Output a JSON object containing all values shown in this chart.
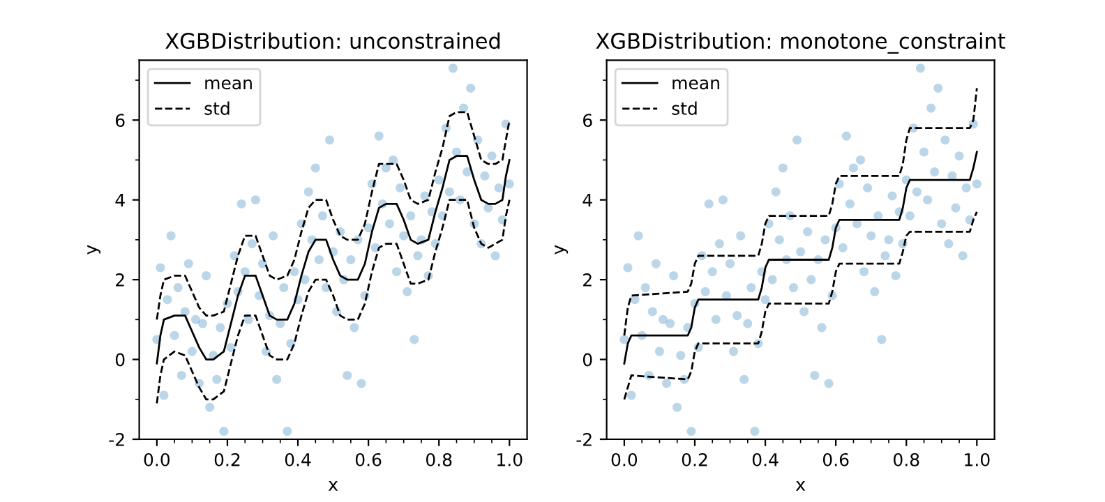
{
  "chart_data": [
    {
      "type": "scatter",
      "title": "XGBDistribution: unconstrained",
      "xlabel": "x",
      "ylabel": "y",
      "xlim": [
        -0.05,
        1.05
      ],
      "ylim": [
        -2,
        7.5
      ],
      "xticks": [
        {
          "value": 0.0,
          "label": "0.0"
        },
        {
          "value": 0.05,
          "label": null
        },
        {
          "value": 0.1,
          "label": null
        },
        {
          "value": 0.15,
          "label": null
        },
        {
          "value": 0.2,
          "label": "0.2"
        },
        {
          "value": 0.25,
          "label": null
        },
        {
          "value": 0.3,
          "label": null
        },
        {
          "value": 0.35,
          "label": null
        },
        {
          "value": 0.4,
          "label": "0.4"
        },
        {
          "value": 0.45,
          "label": null
        },
        {
          "value": 0.5,
          "label": null
        },
        {
          "value": 0.55,
          "label": null
        },
        {
          "value": 0.6,
          "label": "0.6"
        },
        {
          "value": 0.65,
          "label": null
        },
        {
          "value": 0.7,
          "label": null
        },
        {
          "value": 0.75,
          "label": null
        },
        {
          "value": 0.8,
          "label": "0.8"
        },
        {
          "value": 0.85,
          "label": null
        },
        {
          "value": 0.9,
          "label": null
        },
        {
          "value": 0.95,
          "label": null
        },
        {
          "value": 1.0,
          "label": "1.0"
        }
      ],
      "yticks": [
        -2,
        {
          "value": -1,
          "label": null
        },
        0,
        {
          "value": 1,
          "label": null
        },
        2,
        {
          "value": 3,
          "label": null
        },
        4,
        {
          "value": 5,
          "label": null
        },
        6,
        {
          "value": 7,
          "label": null
        }
      ],
      "grid": false,
      "legend": "top left",
      "series": [
        {
          "marker": "circle",
          "color": "#1f77b4",
          "x": [
            0.0,
            0.01,
            0.02,
            0.03,
            0.04,
            0.05,
            0.06,
            0.07,
            0.08,
            0.09,
            0.1,
            0.11,
            0.12,
            0.13,
            0.14,
            0.15,
            0.16,
            0.17,
            0.18,
            0.19,
            0.2,
            0.21,
            0.22,
            0.23,
            0.24,
            0.25,
            0.26,
            0.27,
            0.28,
            0.29,
            0.3,
            0.31,
            0.32,
            0.33,
            0.34,
            0.35,
            0.36,
            0.37,
            0.38,
            0.39,
            0.4,
            0.41,
            0.42,
            0.43,
            0.44,
            0.45,
            0.46,
            0.47,
            0.48,
            0.49,
            0.5,
            0.51,
            0.52,
            0.53,
            0.54,
            0.55,
            0.56,
            0.57,
            0.58,
            0.59,
            0.6,
            0.61,
            0.62,
            0.63,
            0.64,
            0.65,
            0.66,
            0.67,
            0.68,
            0.69,
            0.7,
            0.71,
            0.72,
            0.73,
            0.74,
            0.75,
            0.76,
            0.77,
            0.78,
            0.79,
            0.8,
            0.81,
            0.82,
            0.83,
            0.84,
            0.85,
            0.86,
            0.87,
            0.88,
            0.89,
            0.9,
            0.91,
            0.92,
            0.93,
            0.94,
            0.95,
            0.96,
            0.97,
            0.98,
            0.99,
            1.0
          ],
          "values": [
            0.5,
            2.3,
            -0.9,
            1.5,
            3.1,
            0.6,
            1.8,
            -0.4,
            1.2,
            2.4,
            0.2,
            1.0,
            -0.6,
            0.9,
            2.1,
            -1.2,
            0.1,
            -0.5,
            0.8,
            -1.8,
            1.4,
            0.3,
            2.6,
            1.7,
            3.9,
            2.2,
            1.0,
            2.9,
            4.0,
            1.6,
            2.4,
            0.2,
            1.1,
            3.1,
            -0.5,
            0.9,
            1.8,
            -1.8,
            0.4,
            2.2,
            1.5,
            3.4,
            2.0,
            4.2,
            3.0,
            4.8,
            2.5,
            3.6,
            1.8,
            5.5,
            2.7,
            1.2,
            3.2,
            2.0,
            -0.4,
            2.5,
            0.8,
            3.0,
            -0.6,
            1.6,
            3.3,
            4.4,
            2.8,
            5.6,
            3.9,
            4.8,
            3.4,
            5.0,
            2.2,
            4.3,
            3.1,
            1.7,
            3.6,
            0.5,
            2.6,
            3.0,
            4.1,
            2.1,
            3.7,
            2.9,
            4.5,
            3.6,
            5.8,
            4.2,
            7.3,
            5.2,
            4.0,
            6.3,
            4.7,
            6.8,
            3.4,
            5.5,
            2.9,
            4.6,
            3.8,
            5.1,
            2.6,
            4.3,
            3.5,
            5.9,
            4.4
          ]
        },
        {
          "type": "line",
          "name": "mean",
          "color": "#000000",
          "line_style": "solid",
          "marker": "none",
          "x": [
            0,
            0.01,
            0.02,
            0.05,
            0.08,
            0.1,
            0.12,
            0.14,
            0.16,
            0.19,
            0.21,
            0.23,
            0.25,
            0.28,
            0.3,
            0.32,
            0.34,
            0.37,
            0.39,
            0.41,
            0.43,
            0.45,
            0.48,
            0.5,
            0.52,
            0.54,
            0.57,
            0.59,
            0.61,
            0.63,
            0.65,
            0.68,
            0.7,
            0.72,
            0.74,
            0.77,
            0.79,
            0.81,
            0.83,
            0.85,
            0.88,
            0.9,
            0.92,
            0.94,
            0.96,
            0.98,
            0.99,
            1.0
          ],
          "values": [
            -0.1,
            0.6,
            1.0,
            1.1,
            1.1,
            0.7,
            0.3,
            0.0,
            0.0,
            0.2,
            0.9,
            1.6,
            2.1,
            2.1,
            1.6,
            1.1,
            1.0,
            1.0,
            1.4,
            2.1,
            2.7,
            3.0,
            3.0,
            2.5,
            2.1,
            2.0,
            2.0,
            2.4,
            3.2,
            3.8,
            3.9,
            3.9,
            3.5,
            3.0,
            2.9,
            3.0,
            3.7,
            4.3,
            5.0,
            5.1,
            5.1,
            4.5,
            4.0,
            3.9,
            3.9,
            4.0,
            4.6,
            5.0
          ]
        },
        {
          "type": "line",
          "name": "std",
          "color": "#000000",
          "line_style": "dashed",
          "marker": "none",
          "x": [
            0,
            0.01,
            0.02,
            0.05,
            0.08,
            0.1,
            0.12,
            0.14,
            0.16,
            0.19,
            0.21,
            0.23,
            0.25,
            0.28,
            0.3,
            0.32,
            0.34,
            0.37,
            0.39,
            0.41,
            0.43,
            0.45,
            0.48,
            0.5,
            0.52,
            0.54,
            0.57,
            0.59,
            0.61,
            0.63,
            0.65,
            0.68,
            0.7,
            0.72,
            0.74,
            0.77,
            0.79,
            0.81,
            0.83,
            0.85,
            0.88,
            0.9,
            0.92,
            0.94,
            0.96,
            0.98,
            0.99,
            1.0
          ],
          "values": [
            1.0,
            1.6,
            2.0,
            2.1,
            2.1,
            1.7,
            1.3,
            1.1,
            1.1,
            1.2,
            1.9,
            2.6,
            3.1,
            3.1,
            2.6,
            2.1,
            2.0,
            2.1,
            2.5,
            3.2,
            3.8,
            4.0,
            4.0,
            3.5,
            3.1,
            3.0,
            3.0,
            3.4,
            4.2,
            4.9,
            4.9,
            4.9,
            4.5,
            4.0,
            3.9,
            4.0,
            4.7,
            5.3,
            6.1,
            6.2,
            6.2,
            5.6,
            5.0,
            4.9,
            4.9,
            5.0,
            5.5,
            6.0
          ]
        },
        {
          "type": "line",
          "color": "#000000",
          "line_style": "dashed",
          "marker": "none",
          "x": [
            0,
            0.01,
            0.02,
            0.05,
            0.08,
            0.1,
            0.12,
            0.14,
            0.16,
            0.19,
            0.21,
            0.23,
            0.25,
            0.28,
            0.3,
            0.32,
            0.34,
            0.37,
            0.39,
            0.41,
            0.43,
            0.45,
            0.48,
            0.5,
            0.52,
            0.54,
            0.57,
            0.59,
            0.61,
            0.63,
            0.65,
            0.68,
            0.7,
            0.72,
            0.74,
            0.77,
            0.79,
            0.81,
            0.83,
            0.85,
            0.88,
            0.9,
            0.92,
            0.94,
            0.96,
            0.98,
            0.99,
            1.0
          ],
          "values": [
            -1.1,
            -0.4,
            0.0,
            0.2,
            0.1,
            -0.3,
            -0.7,
            -1.0,
            -1.0,
            -0.8,
            -0.1,
            0.6,
            1.1,
            1.1,
            0.6,
            0.1,
            0.0,
            0.0,
            0.4,
            1.1,
            1.7,
            2.0,
            2.0,
            1.6,
            1.1,
            1.0,
            1.0,
            1.4,
            2.2,
            2.8,
            2.9,
            2.9,
            2.4,
            1.9,
            1.9,
            2.0,
            2.7,
            3.3,
            4.0,
            4.0,
            4.0,
            3.3,
            2.9,
            2.8,
            2.9,
            3.0,
            3.6,
            4.0
          ]
        }
      ]
    },
    {
      "type": "scatter",
      "title": "XGBDistribution: monotone_constraint",
      "xlabel": "x",
      "ylabel": "y",
      "xlim": [
        -0.05,
        1.05
      ],
      "ylim": [
        -2,
        7.5
      ],
      "xticks": [
        {
          "value": 0.0,
          "label": "0.0"
        },
        {
          "value": 0.05,
          "label": null
        },
        {
          "value": 0.1,
          "label": null
        },
        {
          "value": 0.15,
          "label": null
        },
        {
          "value": 0.2,
          "label": "0.2"
        },
        {
          "value": 0.25,
          "label": null
        },
        {
          "value": 0.3,
          "label": null
        },
        {
          "value": 0.35,
          "label": null
        },
        {
          "value": 0.4,
          "label": "0.4"
        },
        {
          "value": 0.45,
          "label": null
        },
        {
          "value": 0.5,
          "label": null
        },
        {
          "value": 0.55,
          "label": null
        },
        {
          "value": 0.6,
          "label": "0.6"
        },
        {
          "value": 0.65,
          "label": null
        },
        {
          "value": 0.7,
          "label": null
        },
        {
          "value": 0.75,
          "label": null
        },
        {
          "value": 0.8,
          "label": "0.8"
        },
        {
          "value": 0.85,
          "label": null
        },
        {
          "value": 0.9,
          "label": null
        },
        {
          "value": 0.95,
          "label": null
        },
        {
          "value": 1.0,
          "label": "1.0"
        }
      ],
      "yticks": [
        -2,
        {
          "value": -1,
          "label": null
        },
        0,
        {
          "value": 1,
          "label": null
        },
        2,
        {
          "value": 3,
          "label": null
        },
        4,
        {
          "value": 5,
          "label": null
        },
        6,
        {
          "value": 7,
          "label": null
        }
      ],
      "grid": false,
      "legend": "top left",
      "series": [
        {
          "marker": "circle",
          "color": "#1f77b4",
          "x": [
            0.0,
            0.01,
            0.02,
            0.03,
            0.04,
            0.05,
            0.06,
            0.07,
            0.08,
            0.09,
            0.1,
            0.11,
            0.12,
            0.13,
            0.14,
            0.15,
            0.16,
            0.17,
            0.18,
            0.19,
            0.2,
            0.21,
            0.22,
            0.23,
            0.24,
            0.25,
            0.26,
            0.27,
            0.28,
            0.29,
            0.3,
            0.31,
            0.32,
            0.33,
            0.34,
            0.35,
            0.36,
            0.37,
            0.38,
            0.39,
            0.4,
            0.41,
            0.42,
            0.43,
            0.44,
            0.45,
            0.46,
            0.47,
            0.48,
            0.49,
            0.5,
            0.51,
            0.52,
            0.53,
            0.54,
            0.55,
            0.56,
            0.57,
            0.58,
            0.59,
            0.6,
            0.61,
            0.62,
            0.63,
            0.64,
            0.65,
            0.66,
            0.67,
            0.68,
            0.69,
            0.7,
            0.71,
            0.72,
            0.73,
            0.74,
            0.75,
            0.76,
            0.77,
            0.78,
            0.79,
            0.8,
            0.81,
            0.82,
            0.83,
            0.84,
            0.85,
            0.86,
            0.87,
            0.88,
            0.89,
            0.9,
            0.91,
            0.92,
            0.93,
            0.94,
            0.95,
            0.96,
            0.97,
            0.98,
            0.99,
            1.0
          ],
          "values": [
            0.5,
            2.3,
            -0.9,
            1.5,
            3.1,
            0.6,
            1.8,
            -0.4,
            1.2,
            2.4,
            0.2,
            1.0,
            -0.6,
            0.9,
            2.1,
            -1.2,
            0.1,
            -0.5,
            0.8,
            -1.8,
            1.4,
            0.3,
            2.6,
            1.7,
            3.9,
            2.2,
            1.0,
            2.9,
            4.0,
            1.6,
            2.4,
            0.2,
            1.1,
            3.1,
            -0.5,
            0.9,
            1.8,
            -1.8,
            0.4,
            2.2,
            1.5,
            3.4,
            2.0,
            4.2,
            3.0,
            4.8,
            2.5,
            3.6,
            1.8,
            5.5,
            2.7,
            1.2,
            3.2,
            2.0,
            -0.4,
            2.5,
            0.8,
            3.0,
            -0.6,
            1.6,
            3.3,
            4.4,
            2.8,
            5.6,
            3.9,
            4.8,
            3.4,
            5.0,
            2.2,
            4.3,
            3.1,
            1.7,
            3.6,
            0.5,
            2.6,
            3.0,
            4.1,
            2.1,
            3.7,
            2.9,
            4.5,
            3.6,
            5.8,
            4.2,
            7.3,
            5.2,
            4.0,
            6.3,
            4.7,
            6.8,
            3.4,
            5.5,
            2.9,
            4.6,
            3.8,
            5.1,
            2.6,
            4.3,
            3.5,
            5.9,
            4.4
          ]
        },
        {
          "type": "line",
          "name": "mean",
          "color": "#000000",
          "line_style": "solid",
          "marker": "none",
          "x": [
            0,
            0.01,
            0.02,
            0.18,
            0.19,
            0.2,
            0.21,
            0.38,
            0.39,
            0.4,
            0.41,
            0.58,
            0.59,
            0.6,
            0.61,
            0.78,
            0.79,
            0.8,
            0.81,
            0.98,
            0.99,
            1.0
          ],
          "values": [
            -0.1,
            0.4,
            0.6,
            0.6,
            0.8,
            1.3,
            1.5,
            1.5,
            1.8,
            2.3,
            2.5,
            2.5,
            2.8,
            3.3,
            3.5,
            3.5,
            3.8,
            4.3,
            4.5,
            4.5,
            4.8,
            5.2
          ]
        },
        {
          "type": "line",
          "name": "std",
          "color": "#000000",
          "line_style": "dashed",
          "marker": "none",
          "x": [
            0,
            0.01,
            0.02,
            0.18,
            0.19,
            0.2,
            0.21,
            0.38,
            0.39,
            0.4,
            0.41,
            0.58,
            0.59,
            0.6,
            0.61,
            0.78,
            0.79,
            0.8,
            0.81,
            0.98,
            0.99,
            1.0
          ],
          "values": [
            0.6,
            1.3,
            1.6,
            1.7,
            1.9,
            2.4,
            2.6,
            2.6,
            2.9,
            3.4,
            3.6,
            3.6,
            3.9,
            4.4,
            4.6,
            4.6,
            4.9,
            5.5,
            5.8,
            5.8,
            6.0,
            6.8
          ]
        },
        {
          "type": "line",
          "color": "#000000",
          "line_style": "dashed",
          "marker": "none",
          "x": [
            0,
            0.01,
            0.02,
            0.18,
            0.19,
            0.2,
            0.21,
            0.38,
            0.39,
            0.4,
            0.41,
            0.58,
            0.59,
            0.6,
            0.61,
            0.78,
            0.79,
            0.8,
            0.81,
            0.98,
            0.99,
            1.0
          ],
          "values": [
            -1.0,
            -0.7,
            -0.4,
            -0.5,
            -0.3,
            0.2,
            0.4,
            0.4,
            0.7,
            1.2,
            1.4,
            1.4,
            1.7,
            2.2,
            2.4,
            2.4,
            2.7,
            3.1,
            3.2,
            3.2,
            3.5,
            3.7
          ]
        }
      ]
    }
  ]
}
